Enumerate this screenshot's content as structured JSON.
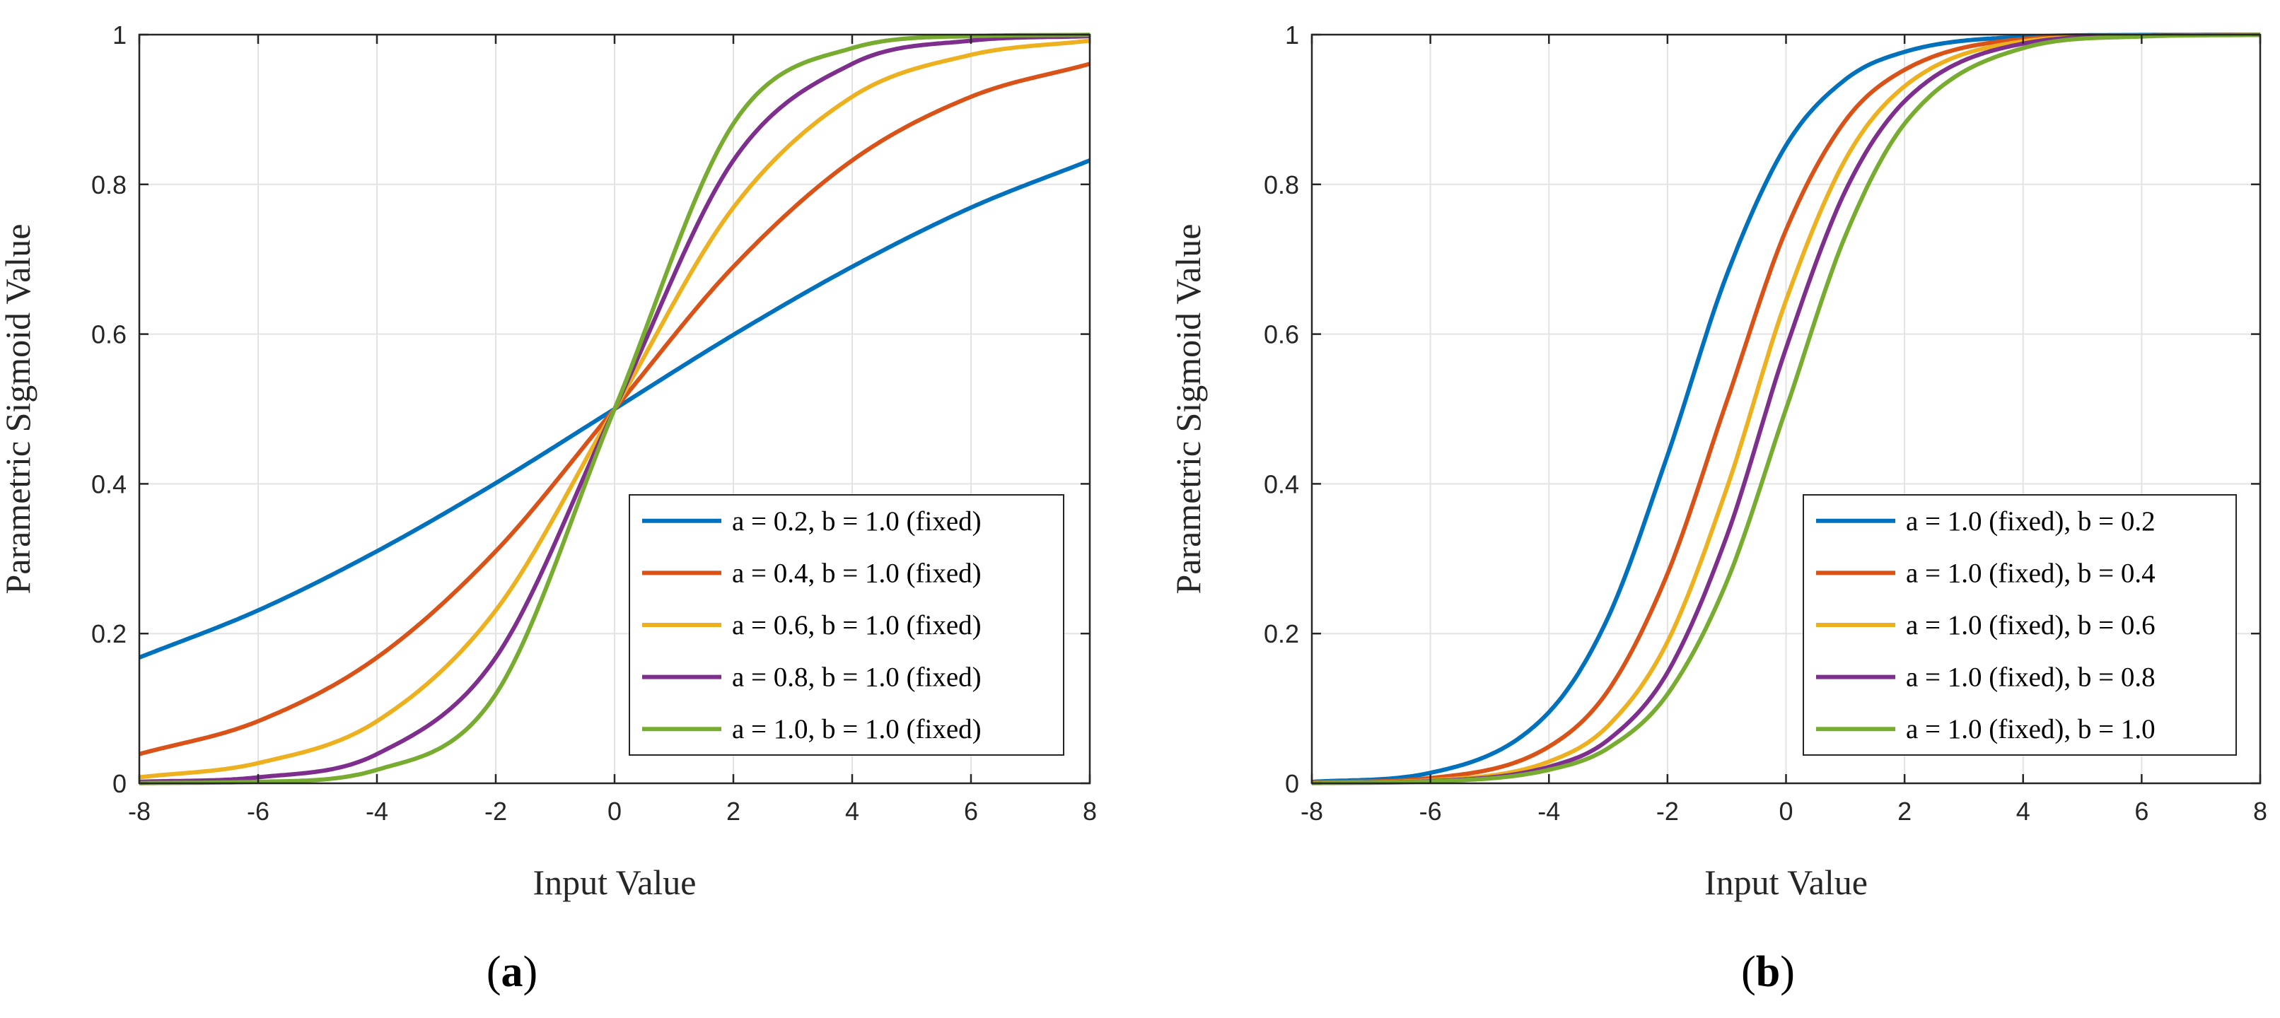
{
  "chart_data": [
    {
      "type": "line",
      "panel_label": "a",
      "xlabel": "Input Value",
      "ylabel": "Parametric Sigmoid Value",
      "xlim": [
        -8,
        8
      ],
      "ylim": [
        0,
        1
      ],
      "xticks": [
        "-8",
        "-6",
        "-4",
        "-2",
        "0",
        "2",
        "4",
        "6",
        "8"
      ],
      "yticks": [
        "0",
        "0.2",
        "0.4",
        "0.6",
        "0.8",
        "1"
      ],
      "grid": true,
      "legend_position": "lower-right",
      "x": [
        -8,
        -6,
        -4,
        -2,
        0,
        2,
        4,
        6,
        8
      ],
      "series": [
        {
          "name": "a = 0.2, b = 1.0 (fixed)",
          "color": "#0072BD",
          "values": [
            0.168,
            0.231,
            0.31,
            0.401,
            0.5,
            0.599,
            0.69,
            0.769,
            0.832
          ]
        },
        {
          "name": "a = 0.4, b = 1.0 (fixed)",
          "color": "#D95319",
          "values": [
            0.039,
            0.083,
            0.168,
            0.31,
            0.5,
            0.69,
            0.832,
            0.917,
            0.961
          ]
        },
        {
          "name": "a = 0.6, b = 1.0 (fixed)",
          "color": "#EDB120",
          "values": [
            0.008,
            0.027,
            0.083,
            0.231,
            0.5,
            0.769,
            0.917,
            0.973,
            0.992
          ]
        },
        {
          "name": "a = 0.8, b = 1.0 (fixed)",
          "color": "#7E2F8E",
          "values": [
            0.002,
            0.008,
            0.039,
            0.168,
            0.5,
            0.832,
            0.961,
            0.992,
            0.998
          ]
        },
        {
          "name": "a = 1.0, b = 1.0 (fixed)",
          "color": "#77AC30",
          "values": [
            0.0003,
            0.002,
            0.018,
            0.119,
            0.5,
            0.881,
            0.982,
            0.998,
            0.9997
          ]
        }
      ]
    },
    {
      "type": "line",
      "panel_label": "b",
      "xlabel": "Input Value",
      "ylabel": "Parametric Sigmoid Value",
      "xlim": [
        -8,
        8
      ],
      "ylim": [
        0,
        1
      ],
      "xticks": [
        "-8",
        "-6",
        "-4",
        "-2",
        "0",
        "2",
        "4",
        "6",
        "8"
      ],
      "yticks": [
        "0",
        "0.2",
        "0.4",
        "0.6",
        "0.8",
        "1"
      ],
      "grid": true,
      "legend_position": "lower-right",
      "x": [
        -8,
        -6,
        -4,
        -3,
        -2,
        -1,
        0,
        1,
        2,
        4,
        6,
        8
      ],
      "series": [
        {
          "name": "a = 1.0 (fixed), b = 0.2",
          "color": "#0072BD",
          "values": [
            0.002,
            0.014,
            0.095,
            0.222,
            0.438,
            0.679,
            0.852,
            0.94,
            0.977,
            0.997,
            0.9996,
            0.99995
          ]
        },
        {
          "name": "a = 1.0 (fixed), b = 0.4",
          "color": "#D95319",
          "values": [
            0.001,
            0.007,
            0.049,
            0.124,
            0.28,
            0.51,
            0.739,
            0.885,
            0.953,
            0.994,
            0.999,
            0.9999
          ]
        },
        {
          "name": "a = 1.0 (fixed), b = 0.6",
          "color": "#EDB120",
          "values": [
            0.0005,
            0.004,
            0.029,
            0.077,
            0.189,
            0.394,
            0.645,
            0.833,
            0.931,
            0.991,
            0.9988,
            0.9998
          ]
        },
        {
          "name": "a = 1.0 (fixed), b = 0.8",
          "color": "#7E2F8E",
          "values": [
            0.0004,
            0.003,
            0.022,
            0.058,
            0.148,
            0.33,
            0.581,
            0.791,
            0.911,
            0.988,
            0.9984,
            0.9998
          ]
        },
        {
          "name": "a = 1.0 (fixed), b = 1.0",
          "color": "#77AC30",
          "values": [
            0.0003,
            0.0025,
            0.018,
            0.047,
            0.119,
            0.269,
            0.5,
            0.731,
            0.881,
            0.982,
            0.9975,
            0.9997
          ]
        }
      ]
    }
  ]
}
